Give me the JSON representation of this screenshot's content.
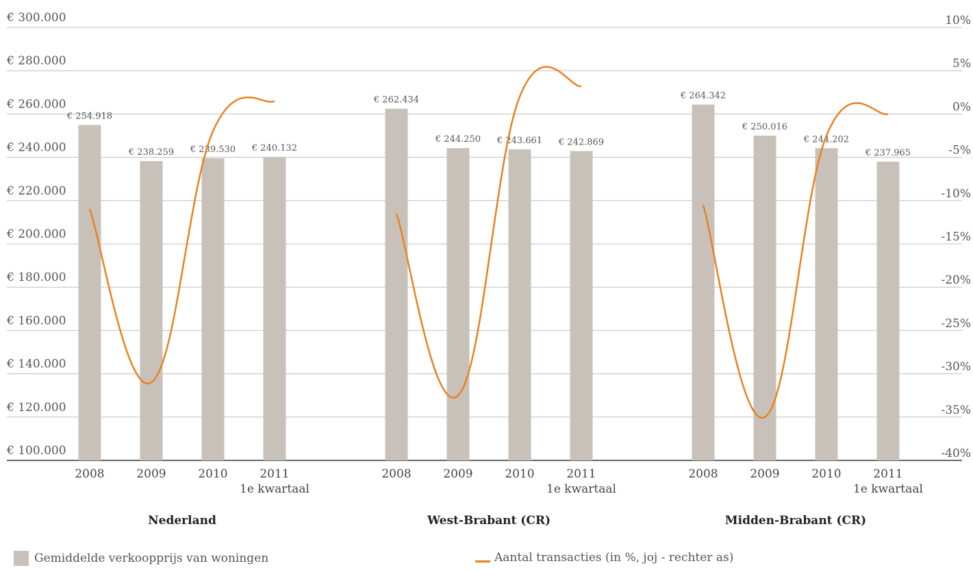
{
  "colors": {
    "bar": "#c8c1b9",
    "line": "#e8821e",
    "grid": "#bfbfbf",
    "axis": "#333333"
  },
  "legend": {
    "bar_label": "Gemiddelde verkoopprijs van woningen",
    "line_label": "Aantal transacties (in %, joj - rechter as)"
  },
  "chart_data": {
    "type": "bar",
    "y_left": {
      "min": 100000,
      "max": 300000,
      "step": 20000,
      "tick_labels": [
        "€ 100.000",
        "€ 120.000",
        "€ 140.000",
        "€ 160.000",
        "€ 180.000",
        "€ 200.000",
        "€ 220.000",
        "€ 240.000",
        "€ 260.000",
        "€ 280.000",
        "€ 300.000"
      ]
    },
    "y_right": {
      "min": -40,
      "max": 10,
      "step": 5,
      "tick_labels": [
        "-40%",
        "-35%",
        "-30%",
        "-25%",
        "-20%",
        "-15%",
        "-10%",
        "-5%",
        "0%",
        "5%",
        "10%"
      ]
    },
    "grid": true,
    "legend_position": "bottom",
    "groups": [
      {
        "name": "Nederland",
        "categories": [
          "2008",
          "2009",
          "2010",
          "2011"
        ],
        "category_sublabels": [
          "",
          "",
          "",
          "1e kwartaal"
        ],
        "bar_values": [
          254918,
          238259,
          239530,
          240132
        ],
        "bar_labels": [
          "€ 254.918",
          "€ 238.259",
          "€ 239.530",
          "€ 240.132"
        ],
        "line_values": [
          -11,
          -31,
          -2,
          1.5
        ]
      },
      {
        "name": "West-Brabant (CR)",
        "categories": [
          "2008",
          "2009",
          "2010",
          "2011"
        ],
        "category_sublabels": [
          "",
          "",
          "",
          "1e kwartaal"
        ],
        "bar_values": [
          262434,
          244250,
          243661,
          242869
        ],
        "bar_labels": [
          "€ 262.434",
          "€ 244.250",
          "€ 243.661",
          "€ 242.869"
        ],
        "line_values": [
          -11.5,
          -32.5,
          2,
          3.2
        ]
      },
      {
        "name": "Midden-Brabant (CR)",
        "categories": [
          "2008",
          "2009",
          "2010",
          "2011"
        ],
        "category_sublabels": [
          "",
          "",
          "",
          "1e kwartaal"
        ],
        "bar_values": [
          264342,
          250016,
          244202,
          237965
        ],
        "bar_labels": [
          "€ 264.342",
          "€ 250.016",
          "€ 244.202",
          "€ 237.965"
        ],
        "line_values": [
          -10.5,
          -35,
          -2.5,
          0
        ]
      }
    ]
  }
}
